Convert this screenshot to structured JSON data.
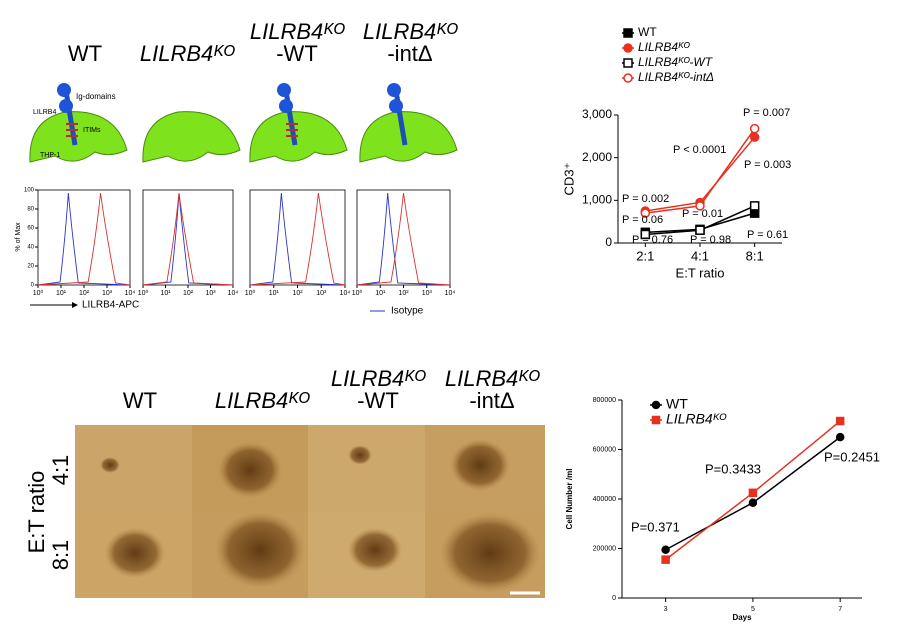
{
  "columns": [
    {
      "line1": "WT"
    },
    {
      "line1": "LILRB4ᴷᴼ"
    },
    {
      "line1": "LILRB4ᴷᴼ",
      "line2": "-WT"
    },
    {
      "line1": "LILRB4ᴷᴼ",
      "line2": "-intΔ"
    }
  ],
  "schematic": {
    "ig": "Ig-domains",
    "receptor": "LILRB4",
    "itims": "ITIMs",
    "cell": "THP-1"
  },
  "flow": {
    "y_label": "% of Max",
    "x_label": "LILRB4-APC",
    "legend": "Isotype",
    "yticks": [
      0,
      20,
      40,
      60,
      80,
      100
    ],
    "xticks": [
      {
        "value": 1,
        "label": "10⁰"
      },
      {
        "value": 10,
        "label": "10¹"
      },
      {
        "value": 100,
        "label": "10²"
      },
      {
        "value": 1000,
        "label": "10³"
      },
      {
        "value": 10000,
        "label": "10⁴"
      }
    ]
  },
  "microscopy": {
    "row_title": "E:T ratio",
    "rows": [
      "4:1",
      "8:1"
    ]
  },
  "chart_data": [
    {
      "type": "line",
      "y_label": "CD3⁺",
      "x_label": "E:T ratio",
      "categories": [
        "2:1",
        "4:1",
        "8:1"
      ],
      "ylim": [
        0,
        3000
      ],
      "yticks": [
        0,
        {
          "value": 1000,
          "label": "1,000"
        },
        {
          "value": 2000,
          "label": "2,000"
        },
        {
          "value": 3000,
          "label": "3,000"
        }
      ],
      "series": [
        {
          "name": "WT",
          "color": "#000000",
          "marker": "square",
          "filled": true,
          "values": [
            250,
            320,
            700
          ]
        },
        {
          "name": "LILRB4ᴷᴼ",
          "color": "#e8311f",
          "marker": "circle",
          "filled": true,
          "values": [
            750,
            950,
            2480
          ]
        },
        {
          "name": "LILRB4ᴷᴼ-WT",
          "color": "#000000",
          "marker": "square",
          "filled": false,
          "values": [
            200,
            300,
            870
          ]
        },
        {
          "name": "LILRB4ᴷᴼ-intΔ",
          "color": "#e8311f",
          "marker": "circle",
          "filled": false,
          "values": [
            700,
            870,
            2680
          ]
        }
      ],
      "annotations": [
        "P = 0.007",
        "P < 0.0001",
        "P = 0.003",
        "P = 0.002",
        "P = 0.01",
        "P = 0.06",
        "P = 0.76",
        "P = 0.98",
        "P = 0.61"
      ]
    },
    {
      "type": "line",
      "y_label": "Cell Number /ml",
      "x_label": "Days",
      "x": [
        3,
        5,
        7
      ],
      "xlim": [
        2,
        7.5
      ],
      "xticks": [
        3,
        5,
        7
      ],
      "ylim": [
        0,
        800000
      ],
      "yticks": [
        0,
        200000,
        400000,
        600000,
        800000
      ],
      "series": [
        {
          "name": "WT",
          "color": "#000000",
          "marker": "circle",
          "filled": true,
          "values": [
            195000,
            385000,
            650000
          ]
        },
        {
          "name": "LILRB4ᴷᴼ",
          "color": "#e8311f",
          "marker": "square",
          "filled": true,
          "values": [
            155000,
            425000,
            715000
          ]
        }
      ],
      "annotations": [
        "P=0.371",
        "P=0.3433",
        "P=0.2451"
      ]
    }
  ]
}
